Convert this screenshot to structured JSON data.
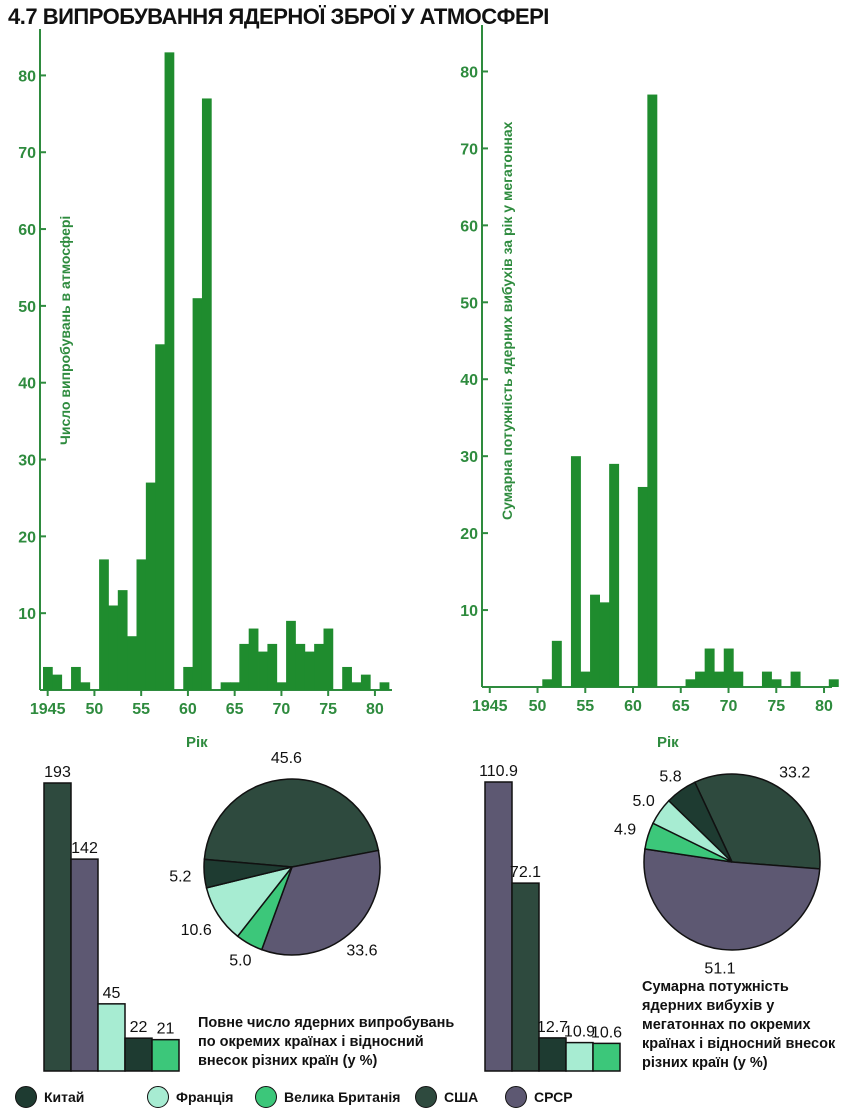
{
  "title": "4.7 ВИПРОБУВАННЯ ЯДЕРНОЇ ЗБРОЇ У АТМОСФЕРІ",
  "colors": {
    "bar_green": "#1f8c2e",
    "axis_green": "#2e8b3e",
    "china": "#1e3b31",
    "france": "#a7ecd2",
    "uk": "#3cc77a",
    "usa": "#2e4a3e",
    "ussr": "#5d5872"
  },
  "legend": [
    {
      "key": "china",
      "label": "Китай",
      "color": "#1e3b31"
    },
    {
      "key": "france",
      "label": "Франція",
      "color": "#a7ecd2"
    },
    {
      "key": "uk",
      "label": "Велика Британія",
      "color": "#3cc77a"
    },
    {
      "key": "usa",
      "label": "США",
      "color": "#2e4a3e"
    },
    {
      "key": "ussr",
      "label": "СРСР",
      "color": "#5d5872"
    }
  ],
  "chart_data": [
    {
      "type": "bar",
      "ylabel": "Число випробувань в атмосфері",
      "xlabel": "Рік",
      "ylim": [
        0,
        85
      ],
      "yticks": [
        10,
        20,
        30,
        40,
        50,
        60,
        70,
        80
      ],
      "xticks": [
        "1945",
        "50",
        "55",
        "60",
        "65",
        "70",
        "75",
        "80"
      ],
      "x": [
        1945,
        1946,
        1947,
        1948,
        1949,
        1950,
        1951,
        1952,
        1953,
        1954,
        1955,
        1956,
        1957,
        1958,
        1959,
        1960,
        1961,
        1962,
        1963,
        1964,
        1965,
        1966,
        1967,
        1968,
        1969,
        1970,
        1971,
        1972,
        1973,
        1974,
        1975,
        1976,
        1977,
        1978,
        1979,
        1980,
        1981
      ],
      "values": [
        3,
        2,
        0,
        3,
        1,
        0,
        17,
        11,
        13,
        7,
        17,
        27,
        45,
        83,
        0,
        3,
        51,
        77,
        0,
        1,
        1,
        6,
        8,
        5,
        6,
        1,
        9,
        6,
        5,
        6,
        8,
        0,
        3,
        1,
        2,
        0,
        1
      ]
    },
    {
      "type": "bar",
      "ylabel": "Сумарна потужність ядерних вибухів за рік у мегатоннах",
      "xlabel": "Рік",
      "ylim": [
        0,
        85
      ],
      "yticks": [
        10,
        20,
        30,
        40,
        50,
        60,
        70,
        80
      ],
      "xticks": [
        "1945",
        "50",
        "55",
        "60",
        "65",
        "70",
        "75",
        "80"
      ],
      "x": [
        1945,
        1946,
        1947,
        1948,
        1949,
        1950,
        1951,
        1952,
        1953,
        1954,
        1955,
        1956,
        1957,
        1958,
        1959,
        1960,
        1961,
        1962,
        1963,
        1964,
        1965,
        1966,
        1967,
        1968,
        1969,
        1970,
        1971,
        1972,
        1973,
        1974,
        1975,
        1976,
        1977,
        1978,
        1979,
        1980,
        1981
      ],
      "values": [
        0,
        0,
        0,
        0,
        0,
        0,
        1,
        6,
        0,
        30,
        2,
        12,
        11,
        29,
        0,
        0,
        26,
        77,
        0,
        0,
        0,
        1,
        2,
        5,
        2,
        5,
        2,
        0,
        0,
        2,
        1,
        0,
        2,
        0,
        0,
        0,
        1
      ]
    },
    {
      "type": "bar",
      "title": "",
      "categories": [
        "СРСР",
        "США",
        "Франція",
        "Китай",
        "Велика Британія"
      ],
      "plot_order": [
        "США",
        "СРСР",
        "Франція",
        "Китай",
        "Велика Британія"
      ],
      "values": [
        142,
        193,
        45,
        22,
        21
      ],
      "value_labels": [
        "142",
        "193",
        "45",
        "22",
        "21"
      ]
    },
    {
      "type": "pie",
      "caption": [
        "Повне число ядерних випробувань",
        "по окремих країнах і відносний",
        "внесок різних країн (у %)"
      ],
      "slices": [
        {
          "country": "США",
          "value": 45.6,
          "label": "45.6"
        },
        {
          "country": "СРСР",
          "value": 33.6,
          "label": "33.6"
        },
        {
          "country": "Велика Британія",
          "value": 5.0,
          "label": "5.0"
        },
        {
          "country": "Франція",
          "value": 10.6,
          "label": "10.6"
        },
        {
          "country": "Китай",
          "value": 5.2,
          "label": "5.2"
        }
      ]
    },
    {
      "type": "bar",
      "categories": [
        "СРСР",
        "США",
        "Китай",
        "Франція",
        "Велика Британія"
      ],
      "values": [
        110.9,
        72.1,
        12.7,
        10.9,
        10.6
      ],
      "value_labels": [
        "110.9",
        "72.1",
        "12.7",
        "10.9",
        "10.6"
      ]
    },
    {
      "type": "pie",
      "caption": [
        "Сумарна потужність",
        "ядерних вибухів у",
        "мегатоннах по окремих",
        "країнах і відносний внесок",
        "різних країн (у %)"
      ],
      "slices": [
        {
          "country": "США",
          "value": 33.2,
          "label": "33.2"
        },
        {
          "country": "СРСР",
          "value": 51.1,
          "label": "51.1"
        },
        {
          "country": "Велика Британія",
          "value": 4.9,
          "label": "4.9"
        },
        {
          "country": "Франція",
          "value": 5.0,
          "label": "5.0"
        },
        {
          "country": "Китай",
          "value": 5.8,
          "label": "5.8"
        }
      ]
    }
  ]
}
